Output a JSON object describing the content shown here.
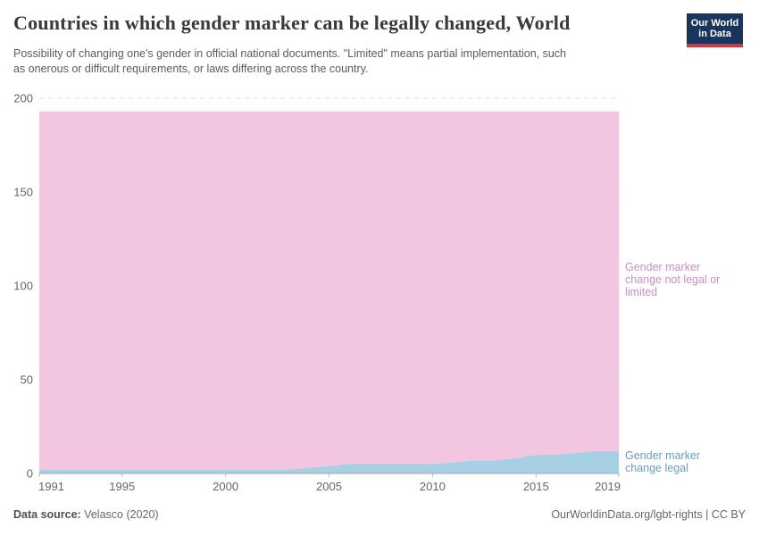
{
  "header": {
    "title": "Countries in which gender marker can be legally changed, World",
    "subtitle_lines": [
      "Possibility of changing one's gender in official national documents. \"Limited\" means partial implementation, such",
      "as onerous or difficult requirements, or laws differing across the country."
    ],
    "logo": {
      "line1": "Our World",
      "line2": "in Data",
      "bg": "#18365d",
      "accent": "#cd3b3f"
    }
  },
  "chart_data": {
    "type": "area",
    "stacked": true,
    "title": "Countries in which gender marker can be legally changed, World",
    "xlabel": "",
    "ylabel": "",
    "ylim": [
      0,
      200
    ],
    "yticks": [
      0,
      50,
      100,
      150,
      200
    ],
    "xticks": [
      1991,
      1995,
      2000,
      2005,
      2010,
      2015,
      2019
    ],
    "grid": "dashed-horizontal",
    "legend_position": "right-of-area",
    "x": [
      1991,
      1992,
      1993,
      1994,
      1995,
      1996,
      1997,
      1998,
      1999,
      2000,
      2001,
      2002,
      2003,
      2004,
      2005,
      2006,
      2007,
      2008,
      2009,
      2010,
      2011,
      2012,
      2013,
      2014,
      2015,
      2016,
      2017,
      2018,
      2019
    ],
    "series": [
      {
        "name": "Gender marker change legal",
        "label_lines": [
          "Gender marker",
          "change legal"
        ],
        "color": "#a8d0e4",
        "label_color": "#62a0c6",
        "values": [
          2,
          2,
          2,
          2,
          2,
          2,
          2,
          2,
          2,
          2,
          2,
          2,
          2,
          3,
          4,
          5,
          5,
          5,
          5,
          5,
          6,
          7,
          7,
          8,
          10,
          10,
          11,
          12,
          12
        ]
      },
      {
        "name": "Gender marker change not legal or limited",
        "label_lines": [
          "Gender marker",
          "change not legal or",
          "limited"
        ],
        "color": "#f2c5e0",
        "label_color": "#c693bb",
        "values": [
          191,
          191,
          191,
          191,
          191,
          191,
          191,
          191,
          191,
          191,
          191,
          191,
          191,
          190,
          189,
          188,
          188,
          188,
          188,
          188,
          187,
          186,
          186,
          185,
          183,
          183,
          182,
          181,
          181
        ]
      }
    ],
    "axis_color": "#a7a7a7",
    "tick_color": "#b9b9b9",
    "grid_color": "#d8d8d8",
    "tick_label_color": "#666666"
  },
  "footer": {
    "source_label": "Data source:",
    "source_value": " Velasco (2020)",
    "credit": "OurWorldinData.org/lgbt-rights | CC BY"
  }
}
